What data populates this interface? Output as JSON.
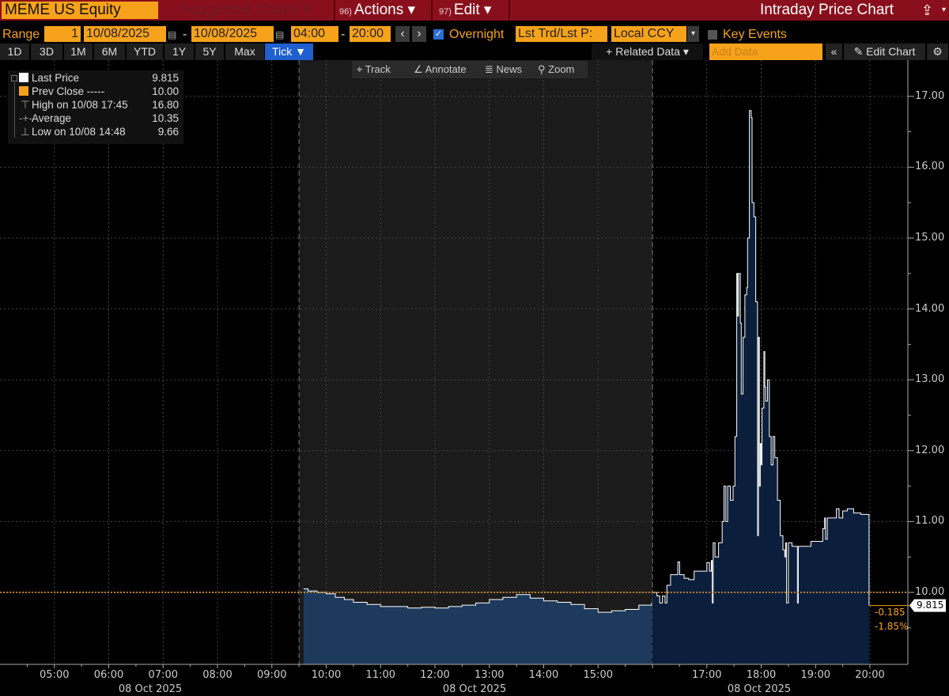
{
  "topbar": {
    "security": "MEME US Equity",
    "suggested": {
      "num": "94)",
      "label": "Suggested Charts ▾"
    },
    "actions": {
      "num": "96)",
      "label": "Actions ▾"
    },
    "edit": {
      "num": "97)",
      "label": "Edit ▾"
    },
    "title": "Intraday Price Chart",
    "share_icon": "share-icon"
  },
  "controls": {
    "range_label": "Range",
    "range_value": "1",
    "start_date": "10/08/2025",
    "end_date": "10/08/2025",
    "dash": "-",
    "start_time": "04:00",
    "end_time": "20:00",
    "overnight_label": "Overnight",
    "overnight_checked": true,
    "price_type": "Lst Trd/Lst P:",
    "currency": "Local CCY",
    "key_events_label": "Key Events",
    "key_events_checked": false
  },
  "periods": [
    "1D",
    "3D",
    "1M",
    "6M",
    "YTD",
    "1Y",
    "5Y",
    "Max"
  ],
  "interval": "Tick ▼",
  "toolbar": {
    "related_data": "+ Related Data ▾",
    "add_data_placeholder": "Add Data",
    "collapse": "«",
    "edit_chart": "✎ Edit Chart",
    "settings_icon": "⚙"
  },
  "chart_tools": [
    {
      "icon": "⌖",
      "label": "Track"
    },
    {
      "icon": "∠",
      "label": "Annotate"
    },
    {
      "icon": "≣",
      "label": "News"
    },
    {
      "icon": "⚲",
      "label": "Zoom"
    }
  ],
  "legend": [
    {
      "label": "Last Price",
      "value": "9.815",
      "swatch": "#ffffff"
    },
    {
      "label": "Prev Close -----",
      "value": "10.00",
      "swatch": "#f7a21b"
    },
    {
      "label": "High on 10/08 17:45",
      "value": "16.80"
    },
    {
      "label": "Average",
      "value": "10.35"
    },
    {
      "label": "Low on 10/08 14:48",
      "value": "9.66"
    }
  ],
  "chart_data": {
    "type": "area",
    "xlim": [
      "04:00",
      "20:00"
    ],
    "ylim": [
      9.0,
      17.3
    ],
    "y_ticks": [
      "17.00",
      "16.00",
      "15.00",
      "14.00",
      "13.00",
      "12.00",
      "11.00",
      "10.00"
    ],
    "x_ticks": [
      "05:00",
      "06:00",
      "07:00",
      "08:00",
      "09:00",
      "10:00",
      "11:00",
      "12:00",
      "13:00",
      "14:00",
      "15:00",
      "17:00",
      "18:00",
      "19:00",
      "20:00"
    ],
    "date_labels": [
      "08 Oct 2025",
      "08 Oct 2025",
      "08 Oct 2025"
    ],
    "session_breaks": [
      "09:30",
      "16:00"
    ],
    "prev_close": 10.0,
    "last_price": "9.815",
    "change": "-0.185",
    "change_pct": "-1.85%",
    "colors": {
      "line": "#ffffff",
      "regular_fill": "#1d3a5c",
      "extended_fill": "#0b1f3d",
      "prev_close": "#f7a21b",
      "regular_bg": "#1b1b1b"
    },
    "regular_session": [
      [
        "09:35",
        10.05
      ],
      [
        "09:40",
        10.02
      ],
      [
        "09:50",
        10.0
      ],
      [
        "10:00",
        9.98
      ],
      [
        "10:10",
        9.93
      ],
      [
        "10:20",
        9.9
      ],
      [
        "10:30",
        9.86
      ],
      [
        "10:45",
        9.83
      ],
      [
        "11:00",
        9.8
      ],
      [
        "11:15",
        9.8
      ],
      [
        "11:30",
        9.78
      ],
      [
        "11:45",
        9.79
      ],
      [
        "12:00",
        9.78
      ],
      [
        "12:15",
        9.8
      ],
      [
        "12:30",
        9.82
      ],
      [
        "12:45",
        9.85
      ],
      [
        "13:00",
        9.9
      ],
      [
        "13:15",
        9.93
      ],
      [
        "13:30",
        9.97
      ],
      [
        "13:45",
        9.92
      ],
      [
        "14:00",
        9.88
      ],
      [
        "14:15",
        9.86
      ],
      [
        "14:30",
        9.83
      ],
      [
        "14:45",
        9.77
      ],
      [
        "15:00",
        9.72
      ],
      [
        "15:15",
        9.74
      ],
      [
        "15:30",
        9.76
      ],
      [
        "15:45",
        9.82
      ],
      [
        "15:59",
        9.85
      ]
    ],
    "extended_session": [
      [
        "16:00",
        10.0
      ],
      [
        "16:05",
        9.95
      ],
      [
        "16:08",
        9.85
      ],
      [
        "16:11",
        9.95
      ],
      [
        "16:14",
        9.85
      ],
      [
        "16:16",
        10.1
      ],
      [
        "16:20",
        10.25
      ],
      [
        "16:28",
        10.43
      ],
      [
        "16:30",
        10.25
      ],
      [
        "16:35",
        10.2
      ],
      [
        "16:40",
        10.18
      ],
      [
        "16:46",
        10.3
      ],
      [
        "16:55",
        10.3
      ],
      [
        "17:00",
        10.42
      ],
      [
        "17:03",
        10.3
      ],
      [
        "17:05",
        10.45
      ],
      [
        "17:06",
        9.85
      ],
      [
        "17:07",
        10.7
      ],
      [
        "17:09",
        10.5
      ],
      [
        "17:13",
        10.7
      ],
      [
        "17:17",
        11.0
      ],
      [
        "17:19",
        11.5
      ],
      [
        "17:21",
        11.0
      ],
      [
        "17:23",
        11.5
      ],
      [
        "17:26",
        11.3
      ],
      [
        "17:29",
        11.5
      ],
      [
        "17:31",
        12.2
      ],
      [
        "17:33",
        14.5
      ],
      [
        "17:34",
        13.9
      ],
      [
        "17:35",
        14.5
      ],
      [
        "17:37",
        13.8
      ],
      [
        "17:38",
        12.8
      ],
      [
        "17:40",
        13.6
      ],
      [
        "17:42",
        14.2
      ],
      [
        "17:44",
        14.3
      ],
      [
        "17:45",
        15.0
      ],
      [
        "17:47",
        16.8
      ],
      [
        "17:49",
        16.7
      ],
      [
        "17:50",
        15.5
      ],
      [
        "17:52",
        15.3
      ],
      [
        "17:54",
        14.1
      ],
      [
        "17:56",
        10.8
      ],
      [
        "17:57",
        13.6
      ],
      [
        "17:58",
        11.5
      ],
      [
        "17:59",
        12.1
      ],
      [
        "18:00",
        11.8
      ],
      [
        "18:01",
        12.6
      ],
      [
        "18:03",
        13.4
      ],
      [
        "18:04",
        12.9
      ],
      [
        "18:05",
        12.7
      ],
      [
        "18:07",
        13.0
      ],
      [
        "18:09",
        12.2
      ],
      [
        "18:11",
        11.8
      ],
      [
        "18:13",
        12.2
      ],
      [
        "18:15",
        11.9
      ],
      [
        "18:18",
        11.3
      ],
      [
        "18:21",
        10.8
      ],
      [
        "18:24",
        10.6
      ],
      [
        "18:26",
        10.5
      ],
      [
        "18:27",
        10.7
      ],
      [
        "18:28",
        9.85
      ],
      [
        "18:30",
        10.7
      ],
      [
        "18:34",
        10.65
      ],
      [
        "18:38",
        10.65
      ],
      [
        "18:40",
        9.85
      ],
      [
        "18:41",
        10.65
      ],
      [
        "18:52",
        10.65
      ],
      [
        "18:55",
        10.72
      ],
      [
        "19:05",
        10.72
      ],
      [
        "19:08",
        10.9
      ],
      [
        "19:10",
        11.05
      ],
      [
        "19:11",
        10.75
      ],
      [
        "19:13",
        11.05
      ],
      [
        "19:20",
        11.05
      ],
      [
        "19:23",
        11.18
      ],
      [
        "19:26",
        11.05
      ],
      [
        "19:30",
        11.15
      ],
      [
        "19:35",
        11.18
      ],
      [
        "19:42",
        11.12
      ],
      [
        "19:50",
        11.1
      ],
      [
        "19:58",
        11.1
      ],
      [
        "19:59",
        9.815
      ]
    ]
  }
}
